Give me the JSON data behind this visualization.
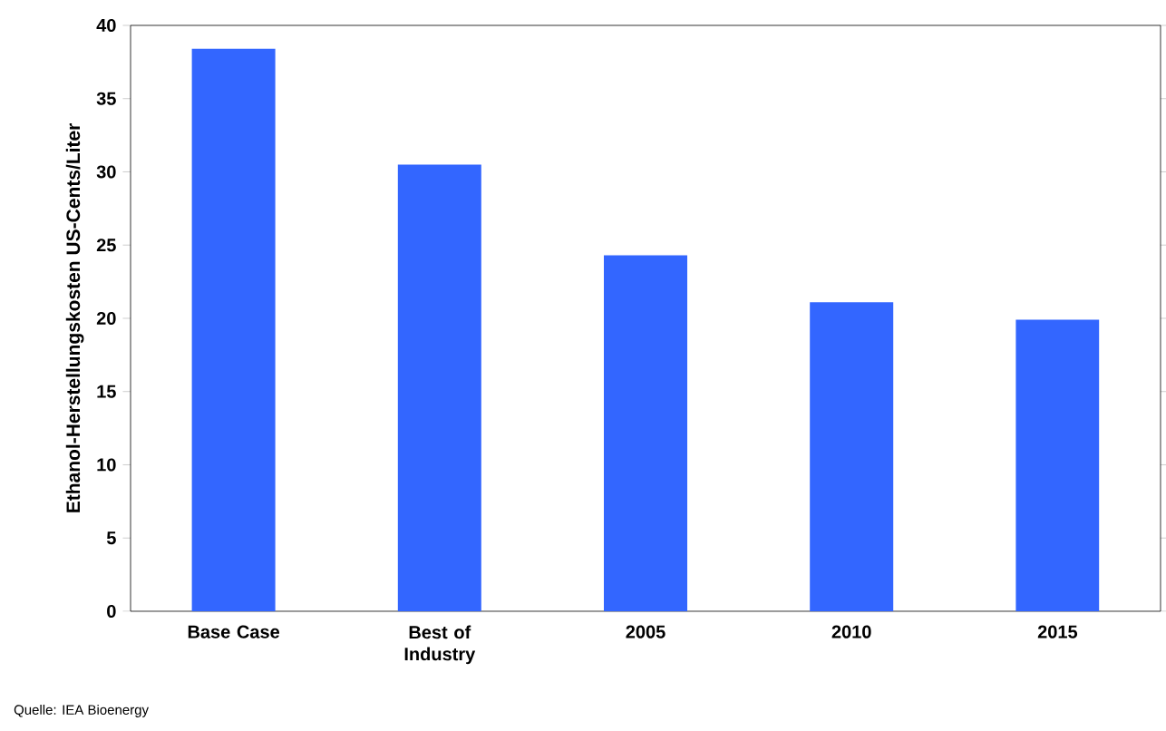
{
  "chart_data": {
    "type": "bar",
    "ylabel": "Ethanol-Herstellungskosten US-Cents/Liter",
    "categories": [
      "Base Case",
      "Best of Industry",
      "2005",
      "2010",
      "2015"
    ],
    "values": [
      38.4,
      30.5,
      24.3,
      21.1,
      19.9
    ],
    "color": "#3366ff",
    "ylim": [
      0,
      40
    ],
    "yticks": [
      0,
      5,
      10,
      15,
      20,
      25,
      30,
      35,
      40
    ],
    "annotations": [
      "Quelle: IEA Bioenergy"
    ]
  }
}
